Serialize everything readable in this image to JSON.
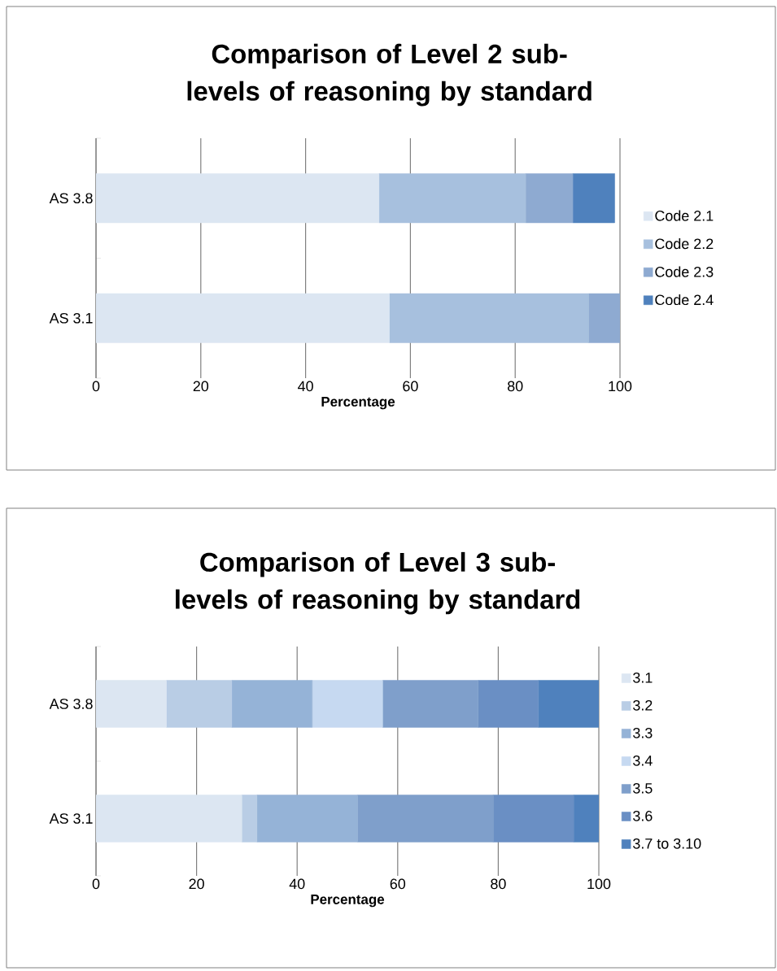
{
  "chart_data": [
    {
      "type": "bar",
      "orientation": "horizontal",
      "stacked": true,
      "title": "Comparison of Level 2 sub-levels of reasoning by standard",
      "xlabel": "Percentage",
      "categories": [
        "AS 3.8",
        "AS 3.1"
      ],
      "series": [
        {
          "name": "Code 2.1",
          "color": "#dce6f2",
          "values": [
            54,
            56
          ]
        },
        {
          "name": "Code 2.2",
          "color": "#a7c0de",
          "values": [
            28,
            38
          ]
        },
        {
          "name": "Code 2.3",
          "color": "#8eaad1",
          "values": [
            9,
            6
          ]
        },
        {
          "name": "Code 2.4",
          "color": "#4f81bd",
          "values": [
            8,
            0
          ]
        }
      ],
      "xlim": [
        0,
        100
      ],
      "xticks": [
        0,
        20,
        40,
        60,
        80,
        100
      ],
      "grid": "x",
      "legend": "right"
    },
    {
      "type": "bar",
      "orientation": "horizontal",
      "stacked": true,
      "title": "Comparison of Level 3 sub-levels of reasoning by standard",
      "xlabel": "Percentage",
      "categories": [
        "AS 3.8",
        "AS 3.1"
      ],
      "series": [
        {
          "name": "3.1",
          "color": "#dce6f2",
          "values": [
            14,
            29
          ]
        },
        {
          "name": "3.2",
          "color": "#b9cde5",
          "values": [
            13,
            3
          ]
        },
        {
          "name": "3.3",
          "color": "#95b3d7",
          "values": [
            16,
            20
          ]
        },
        {
          "name": "3.4",
          "color": "#c6d9f1",
          "values": [
            14,
            0
          ]
        },
        {
          "name": "3.5",
          "color": "#7f9fcb",
          "values": [
            19,
            27
          ]
        },
        {
          "name": "3.6",
          "color": "#6a8fc4",
          "values": [
            12,
            16
          ]
        },
        {
          "name": "3.7 to 3.10",
          "color": "#4f81bd",
          "values": [
            12,
            5
          ]
        }
      ],
      "xlim": [
        0,
        100
      ],
      "xticks": [
        0,
        20,
        40,
        60,
        80,
        100
      ],
      "grid": "x",
      "legend": "right"
    }
  ]
}
